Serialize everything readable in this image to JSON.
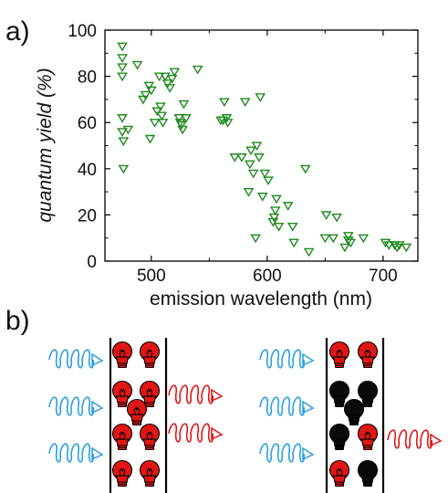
{
  "panel_labels": {
    "a": "a)",
    "b": "b)"
  },
  "colors": {
    "marker": "#1f8a1f",
    "wave_blue": "#2aa0de",
    "wave_red": "#e01616",
    "bulb_red": "#e01616",
    "bulb_black": "#0a0a0a",
    "frame": "#000000"
  },
  "icons": [
    "light-bulb-icon",
    "wavy-arrow-icon"
  ],
  "chart_data": {
    "type": "scatter",
    "xlabel": "emission wavelength (nm)",
    "ylabel": "quantum yield (%)",
    "xlim": [
      460,
      730
    ],
    "ylim": [
      0,
      100
    ],
    "x_ticks": [
      500,
      600,
      700
    ],
    "y_ticks": [
      0,
      20,
      40,
      60,
      80,
      100
    ],
    "grid": false,
    "marker": "open downward triangle",
    "series": [
      {
        "points": [
          [
            475,
            93
          ],
          [
            475,
            88
          ],
          [
            475,
            84
          ],
          [
            475,
            80
          ],
          [
            475,
            62
          ],
          [
            475,
            56
          ],
          [
            476,
            52
          ],
          [
            476,
            40
          ],
          [
            480,
            57
          ],
          [
            488,
            85
          ],
          [
            493,
            70
          ],
          [
            495,
            72
          ],
          [
            498,
            76
          ],
          [
            499,
            53
          ],
          [
            500,
            74
          ],
          [
            503,
            60
          ],
          [
            505,
            65
          ],
          [
            507,
            80
          ],
          [
            508,
            67
          ],
          [
            509,
            63
          ],
          [
            510,
            60
          ],
          [
            512,
            80
          ],
          [
            514,
            77
          ],
          [
            516,
            75
          ],
          [
            518,
            79
          ],
          [
            520,
            82
          ],
          [
            524,
            62
          ],
          [
            525,
            60
          ],
          [
            526,
            59
          ],
          [
            527,
            57
          ],
          [
            528,
            68
          ],
          [
            530,
            62
          ],
          [
            540,
            83
          ],
          [
            560,
            61
          ],
          [
            562,
            61
          ],
          [
            563,
            69
          ],
          [
            565,
            62
          ],
          [
            566,
            60
          ],
          [
            572,
            45
          ],
          [
            578,
            45
          ],
          [
            581,
            69
          ],
          [
            584,
            30
          ],
          [
            585,
            42
          ],
          [
            586,
            48
          ],
          [
            588,
            38
          ],
          [
            590,
            10
          ],
          [
            591,
            50
          ],
          [
            593,
            45
          ],
          [
            594,
            71
          ],
          [
            596,
            28
          ],
          [
            598,
            38
          ],
          [
            601,
            35
          ],
          [
            605,
            17
          ],
          [
            606,
            19
          ],
          [
            607,
            22
          ],
          [
            608,
            27
          ],
          [
            610,
            15
          ],
          [
            618,
            24
          ],
          [
            622,
            15
          ],
          [
            623,
            8
          ],
          [
            633,
            40
          ],
          [
            636,
            4
          ],
          [
            650,
            10
          ],
          [
            651,
            20
          ],
          [
            657,
            10
          ],
          [
            660,
            19
          ],
          [
            667,
            6
          ],
          [
            670,
            9
          ],
          [
            670,
            11
          ],
          [
            672,
            8
          ],
          [
            683,
            10
          ],
          [
            702,
            8
          ],
          [
            705,
            7
          ],
          [
            710,
            7
          ],
          [
            712,
            6
          ],
          [
            714,
            7
          ],
          [
            720,
            6
          ]
        ]
      }
    ]
  }
}
